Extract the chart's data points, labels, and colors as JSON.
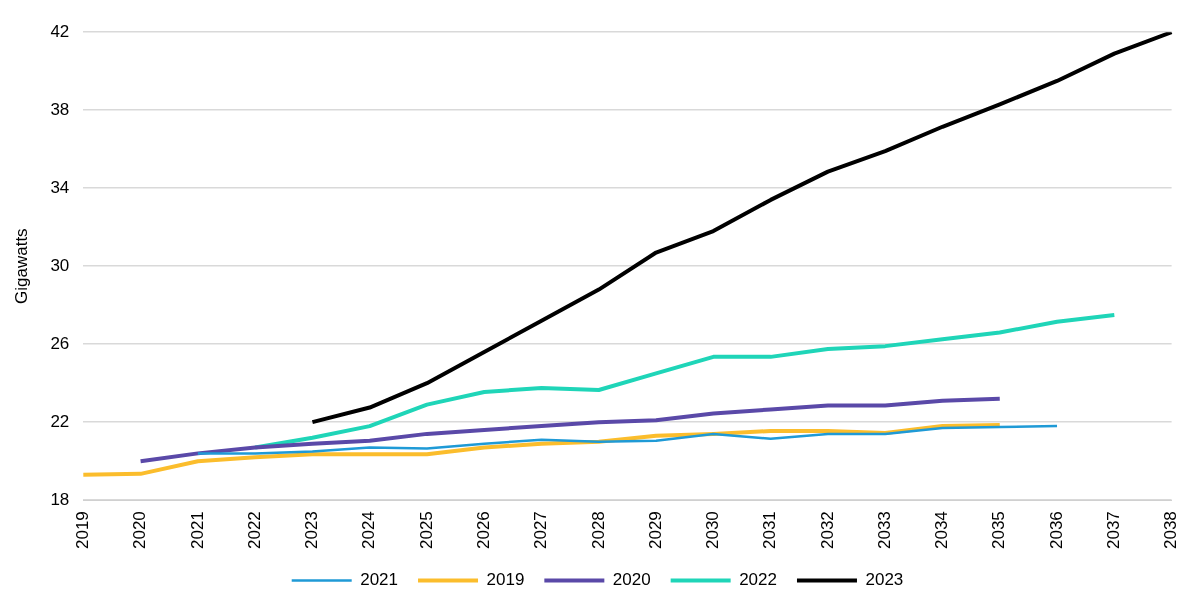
{
  "chart_data": {
    "type": "line",
    "ylabel": "Gigawatts",
    "categories": [
      "2019",
      "2020",
      "2021",
      "2022",
      "2023",
      "2024",
      "2025",
      "2026",
      "2027",
      "2028",
      "2029",
      "2030",
      "2031",
      "2032",
      "2033",
      "2034",
      "2035",
      "2036",
      "2037",
      "2038"
    ],
    "ylim": [
      18,
      42
    ],
    "yticks": [
      18,
      22,
      26,
      30,
      34,
      38,
      42
    ],
    "grid": "y",
    "legend": "bottom",
    "marker": "none",
    "line_style": "solid",
    "series": [
      {
        "name": "2021",
        "color": "#1f9ad6",
        "values": [
          null,
          null,
          20.4,
          20.4,
          20.5,
          20.7,
          20.65,
          20.9,
          21.1,
          21.0,
          21.05,
          21.4,
          21.15,
          21.4,
          21.4,
          21.7,
          21.75,
          21.8,
          null,
          null
        ]
      },
      {
        "name": "2019",
        "color": "#fbbd2c",
        "values": [
          19.3,
          19.35,
          20.0,
          20.2,
          20.35,
          20.35,
          20.35,
          20.7,
          20.9,
          21.0,
          21.3,
          21.4,
          21.55,
          21.55,
          21.45,
          21.8,
          21.85,
          null,
          null,
          null
        ]
      },
      {
        "name": "2020",
        "color": "#5a49a8",
        "values": [
          null,
          20.0,
          20.4,
          20.7,
          20.9,
          21.05,
          21.4,
          21.6,
          21.8,
          22.0,
          22.1,
          22.45,
          22.65,
          22.85,
          22.85,
          23.1,
          23.2,
          null,
          null,
          null
        ]
      },
      {
        "name": "2022",
        "color": "#1fd5b8",
        "values": [
          null,
          null,
          null,
          20.7,
          21.2,
          21.8,
          22.9,
          23.55,
          23.75,
          23.65,
          24.5,
          25.35,
          25.35,
          25.75,
          25.9,
          26.25,
          26.6,
          27.15,
          27.5,
          null
        ]
      },
      {
        "name": "2023",
        "color": "#000000",
        "values": [
          null,
          null,
          null,
          null,
          22.0,
          22.75,
          24.0,
          25.6,
          27.2,
          28.8,
          30.7,
          31.8,
          33.4,
          34.85,
          35.9,
          37.15,
          38.3,
          39.5,
          40.9,
          42.0
        ]
      }
    ]
  }
}
